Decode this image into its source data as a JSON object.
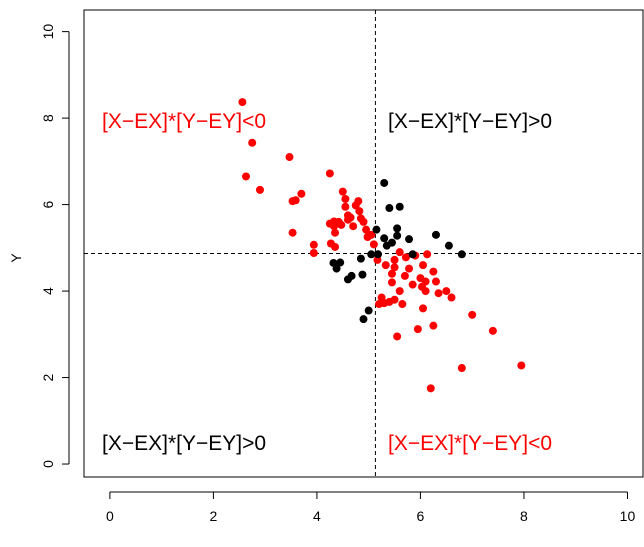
{
  "chart_data": {
    "type": "scatter",
    "title": "",
    "xlabel": "",
    "ylabel": "Y",
    "xlim": [
      -0.5,
      10.3
    ],
    "ylim": [
      -0.3,
      10.5
    ],
    "xticks": [
      "0",
      "2",
      "4",
      "6",
      "8",
      "10"
    ],
    "yticks": [
      "0",
      "2",
      "4",
      "6",
      "8",
      "10"
    ],
    "grid": false,
    "reference_lines": {
      "x_mean": 5.13,
      "y_mean": 4.87
    },
    "colors": {
      "positive": "#000000",
      "negative": "#ff0000",
      "reference": "#000000"
    },
    "annotations": {
      "top_left": {
        "text": "[X−EX]*[Y−EY]<0",
        "color": "#ff0000"
      },
      "top_right": {
        "text": "[X−EX]*[Y−EY]>0",
        "color": "#000000"
      },
      "bottom_left": {
        "text": "[X−EX]*[Y−EY]>0",
        "color": "#000000"
      },
      "bottom_right": {
        "text": "[X−EX]*[Y−EY]<0",
        "color": "#ff0000"
      }
    },
    "series": [
      {
        "color": "#ff0000",
        "points": [
          [
            2.56,
            8.37
          ],
          [
            2.63,
            6.65
          ],
          [
            2.75,
            7.43
          ],
          [
            2.9,
            6.34
          ],
          [
            3.47,
            7.1
          ],
          [
            3.53,
            6.08
          ],
          [
            3.59,
            6.1
          ],
          [
            3.53,
            5.35
          ],
          [
            3.7,
            6.25
          ],
          [
            3.94,
            4.88
          ],
          [
            3.94,
            5.07
          ],
          [
            4.25,
            6.72
          ],
          [
            4.25,
            5.56
          ],
          [
            4.27,
            5.1
          ],
          [
            4.33,
            5.61
          ],
          [
            4.33,
            5.5
          ],
          [
            4.35,
            5.35
          ],
          [
            4.35,
            5.02
          ],
          [
            4.42,
            5.6
          ],
          [
            4.47,
            5.53
          ],
          [
            4.5,
            6.3
          ],
          [
            4.55,
            5.95
          ],
          [
            4.55,
            6.13
          ],
          [
            4.6,
            5.75
          ],
          [
            4.6,
            5.65
          ],
          [
            4.65,
            5.7
          ],
          [
            4.7,
            5.5
          ],
          [
            4.75,
            5.98
          ],
          [
            4.8,
            6.08
          ],
          [
            4.82,
            5.85
          ],
          [
            4.85,
            5.68
          ],
          [
            4.9,
            5.6
          ],
          [
            4.95,
            5.42
          ],
          [
            4.98,
            5.25
          ],
          [
            5.05,
            5.3
          ],
          [
            5.1,
            5.08
          ],
          [
            5.17,
            4.72
          ],
          [
            5.2,
            3.7
          ],
          [
            5.25,
            3.85
          ],
          [
            5.3,
            3.72
          ],
          [
            5.33,
            4.6
          ],
          [
            5.4,
            3.75
          ],
          [
            5.45,
            4.2
          ],
          [
            5.45,
            4.4
          ],
          [
            5.5,
            4.55
          ],
          [
            5.5,
            4.72
          ],
          [
            5.5,
            3.8
          ],
          [
            5.55,
            2.95
          ],
          [
            5.6,
            4.9
          ],
          [
            5.6,
            4.0
          ],
          [
            5.65,
            3.7
          ],
          [
            5.7,
            4.35
          ],
          [
            5.72,
            4.78
          ],
          [
            5.78,
            4.52
          ],
          [
            5.85,
            4.15
          ],
          [
            5.9,
            4.82
          ],
          [
            5.95,
            3.12
          ],
          [
            6.0,
            4.3
          ],
          [
            6.03,
            4.1
          ],
          [
            6.05,
            4.6
          ],
          [
            6.05,
            3.6
          ],
          [
            6.1,
            4.22
          ],
          [
            6.1,
            4.0
          ],
          [
            6.13,
            4.85
          ],
          [
            6.2,
            1.75
          ],
          [
            6.25,
            4.45
          ],
          [
            6.25,
            3.2
          ],
          [
            6.3,
            4.22
          ],
          [
            6.35,
            3.95
          ],
          [
            6.5,
            4.0
          ],
          [
            6.6,
            3.85
          ],
          [
            6.8,
            2.22
          ],
          [
            7.0,
            3.45
          ],
          [
            7.4,
            3.08
          ],
          [
            7.95,
            2.28
          ]
        ]
      },
      {
        "color": "#000000",
        "points": [
          [
            4.32,
            4.65
          ],
          [
            4.38,
            4.52
          ],
          [
            4.45,
            4.66
          ],
          [
            4.6,
            4.27
          ],
          [
            4.67,
            4.35
          ],
          [
            4.85,
            4.75
          ],
          [
            4.88,
            4.38
          ],
          [
            4.9,
            3.35
          ],
          [
            5.0,
            3.55
          ],
          [
            5.05,
            4.85
          ],
          [
            5.15,
            5.42
          ],
          [
            5.18,
            4.85
          ],
          [
            5.3,
            6.5
          ],
          [
            5.3,
            5.22
          ],
          [
            5.35,
            5.05
          ],
          [
            5.4,
            5.92
          ],
          [
            5.45,
            5.12
          ],
          [
            5.55,
            5.45
          ],
          [
            5.55,
            5.28
          ],
          [
            5.6,
            5.95
          ],
          [
            5.78,
            5.2
          ],
          [
            5.85,
            4.85
          ],
          [
            6.3,
            5.3
          ],
          [
            6.55,
            5.05
          ],
          [
            6.8,
            4.85
          ]
        ]
      }
    ]
  }
}
